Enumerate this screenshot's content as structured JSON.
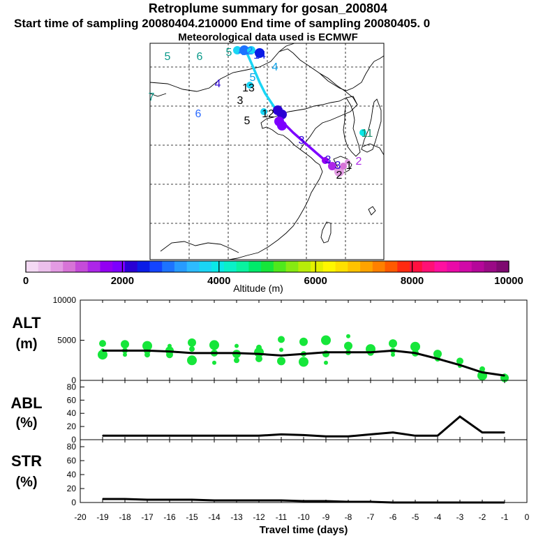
{
  "header": {
    "title": "Retroplume summary for gosan_200804",
    "start_end": "Start time of sampling 20080404.210000     End time of sampling 20080405.    0",
    "met": "Meteorological data used is ECMWF"
  },
  "colorbar": {
    "ticks": [
      "0",
      "2000",
      "4000",
      "6000",
      "8000",
      "10000"
    ],
    "label": "Altitude  (m)",
    "colors": [
      "#f4d9f4",
      "#ecc0ec",
      "#e39be3",
      "#d774d7",
      "#c54bd9",
      "#ad26e8",
      "#9300f2",
      "#7d00ff",
      "#2a00d4",
      "#0b1ce6",
      "#1344ff",
      "#1d73ff",
      "#279bff",
      "#2dbbff",
      "#1ad5f5",
      "#0ae8e8",
      "#0af0c8",
      "#0af2a0",
      "#00ea6a",
      "#16e63a",
      "#4fe81c",
      "#86ea12",
      "#b8ec08",
      "#e3f000",
      "#fff700",
      "#ffe000",
      "#ffc300",
      "#ffa300",
      "#ff8000",
      "#ff5a00",
      "#ff2a10",
      "#ff1040",
      "#ff1075",
      "#ff10a0",
      "#ea0aa8",
      "#d00aa8",
      "#b5079a",
      "#9a0a86",
      "#7e0a70"
    ]
  },
  "map": {
    "numbers": [
      {
        "t": "5",
        "c": "#0a9a8a"
      },
      {
        "t": "6",
        "c": "#0a9a8a"
      },
      {
        "t": "5",
        "c": "#0a9a8a"
      },
      {
        "t": "4",
        "c": "#1d73ff"
      },
      {
        "t": "2",
        "c": "#1d73ff"
      },
      {
        "t": "14",
        "c": "#0b1ce6"
      },
      {
        "t": "4",
        "c": "#0aa0e8"
      },
      {
        "t": "5",
        "c": "#0aa0e8"
      },
      {
        "t": "4",
        "c": "#2a00d4"
      },
      {
        "t": "13",
        "c": "#000000"
      },
      {
        "t": "3",
        "c": "#000000"
      },
      {
        "t": "7",
        "c": "#0a9a8a"
      },
      {
        "t": "6",
        "c": "#2a6aff"
      },
      {
        "t": "5",
        "c": "#000000"
      },
      {
        "t": "12",
        "c": "#000000"
      },
      {
        "t": "3",
        "c": "#2a00d4"
      },
      {
        "t": "3",
        "c": "#2a00d4"
      },
      {
        "t": "11",
        "c": "#1a8a6a"
      },
      {
        "t": "3",
        "c": "#2a00d4"
      },
      {
        "t": "2",
        "c": "#000000"
      },
      {
        "t": "1",
        "c": "#000000"
      },
      {
        "t": "2",
        "c": "#ad26e8"
      }
    ]
  },
  "chart_data": [
    {
      "type": "line",
      "title": "ALT",
      "ylabel": "(m)",
      "ylim": [
        0,
        10000
      ],
      "yticks": [
        "10000",
        "5000",
        "0"
      ],
      "x": [
        -19,
        -18,
        -17,
        -16,
        -15,
        -14,
        -13,
        -12,
        -11,
        -10,
        -9,
        -8,
        -7,
        -6,
        -5,
        -4,
        -3,
        -2,
        -1
      ],
      "series": [
        {
          "name": "median altitude",
          "values": [
            3700,
            3700,
            3700,
            3600,
            3400,
            3400,
            3400,
            3300,
            3100,
            3300,
            3500,
            3500,
            3500,
            3700,
            3400,
            2700,
            1900,
            1000,
            600
          ]
        }
      ],
      "scatter_series": [
        {
          "name": "particle altitudes",
          "points": [
            [
              -19,
              3700
            ],
            [
              -19,
              4600
            ],
            [
              -19,
              3200
            ],
            [
              -18,
              3700
            ],
            [
              -18,
              4500
            ],
            [
              -18,
              3200
            ],
            [
              -17,
              3700
            ],
            [
              -17,
              4300
            ],
            [
              -17,
              3200
            ],
            [
              -16,
              3700
            ],
            [
              -16,
              4300
            ],
            [
              -16,
              3200
            ],
            [
              -15,
              2500
            ],
            [
              -15,
              3900
            ],
            [
              -15,
              4700
            ],
            [
              -14,
              2200
            ],
            [
              -14,
              3400
            ],
            [
              -14,
              4400
            ],
            [
              -13,
              2500
            ],
            [
              -13,
              3300
            ],
            [
              -13,
              4300
            ],
            [
              -12,
              2700
            ],
            [
              -12,
              3500
            ],
            [
              -12,
              4100
            ],
            [
              -11,
              2400
            ],
            [
              -11,
              3800
            ],
            [
              -11,
              5100
            ],
            [
              -10,
              2300
            ],
            [
              -10,
              3300
            ],
            [
              -10,
              4800
            ],
            [
              -9,
              2200
            ],
            [
              -9,
              3300
            ],
            [
              -9,
              5000
            ],
            [
              -8,
              3500
            ],
            [
              -8,
              4300
            ],
            [
              -8,
              5500
            ],
            [
              -7,
              3500
            ],
            [
              -7,
              3900
            ],
            [
              -6,
              3700
            ],
            [
              -6,
              4600
            ],
            [
              -6,
              3200
            ],
            [
              -5,
              3400
            ],
            [
              -5,
              4200
            ],
            [
              -4,
              2700
            ],
            [
              -4,
              3300
            ],
            [
              -3,
              1800
            ],
            [
              -3,
              2400
            ],
            [
              -2,
              600
            ],
            [
              -2,
              1400
            ],
            [
              -1,
              300
            ],
            [
              -1,
              600
            ]
          ]
        }
      ]
    },
    {
      "type": "line",
      "title": "ABL",
      "ylabel": "(%)",
      "ylim": [
        0,
        90
      ],
      "yticks": [
        "80",
        "60",
        "40",
        "20",
        "0"
      ],
      "x": [
        -19,
        -18,
        -17,
        -16,
        -15,
        -14,
        -13,
        -12,
        -11,
        -10,
        -9,
        -8,
        -7,
        -6,
        -5,
        -4,
        -3,
        -2,
        -1
      ],
      "series": [
        {
          "name": "boundary layer fraction",
          "values": [
            6,
            6,
            6,
            6,
            6,
            6,
            6,
            6,
            8,
            7,
            5,
            5,
            8,
            11,
            6,
            6,
            35,
            11,
            11
          ]
        }
      ]
    },
    {
      "type": "line",
      "title": "STR",
      "ylabel": "(%)",
      "ylim": [
        0,
        90
      ],
      "yticks": [
        "80",
        "60",
        "40",
        "20",
        "0"
      ],
      "x": [
        -19,
        -18,
        -17,
        -16,
        -15,
        -14,
        -13,
        -12,
        -11,
        -10,
        -9,
        -8,
        -7,
        -6,
        -5,
        -4,
        -3,
        -2,
        -1
      ],
      "series": [
        {
          "name": "stratospheric fraction",
          "values": [
            5,
            5,
            4,
            4,
            4,
            3,
            3,
            3,
            3,
            2,
            2,
            1,
            1,
            0,
            0,
            0,
            0,
            0,
            0
          ]
        }
      ],
      "xlabel": "Travel time (days)",
      "xticks": [
        "-20",
        "-19",
        "-18",
        "-17",
        "-16",
        "-15",
        "-14",
        "-13",
        "-12",
        "-11",
        "-10",
        "-9",
        "-8",
        "-7",
        "-6",
        "-5",
        "-4",
        "-3",
        "-2",
        "-1",
        "0"
      ]
    }
  ]
}
